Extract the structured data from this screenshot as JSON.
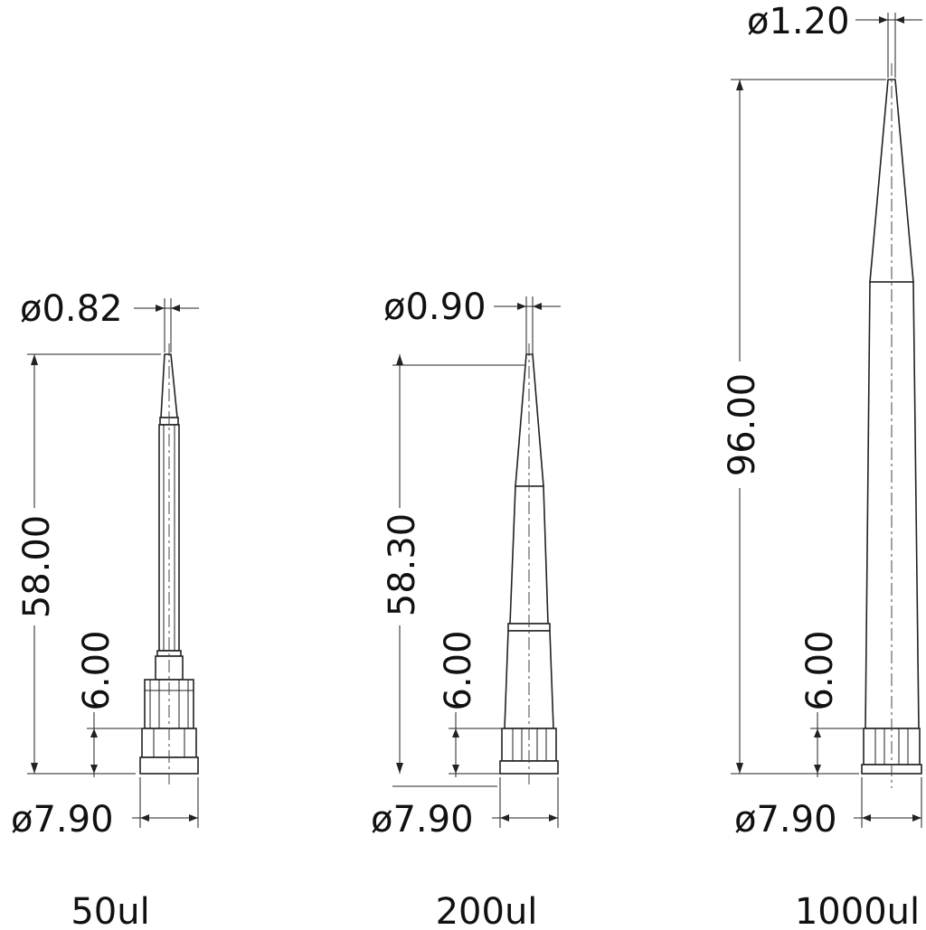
{
  "tips": [
    {
      "name": "50ul",
      "tip_diameter": "ø0.82",
      "length": "58.00",
      "collar_height": "6.00",
      "base_diameter": "ø7.90"
    },
    {
      "name": "200ul",
      "tip_diameter": "ø0.90",
      "length": "58.30",
      "collar_height": "6.00",
      "base_diameter": "ø7.90"
    },
    {
      "name": "1000ul",
      "tip_diameter": "ø1.20",
      "length": "96.00",
      "collar_height": "6.00",
      "base_diameter": "ø7.90"
    }
  ]
}
